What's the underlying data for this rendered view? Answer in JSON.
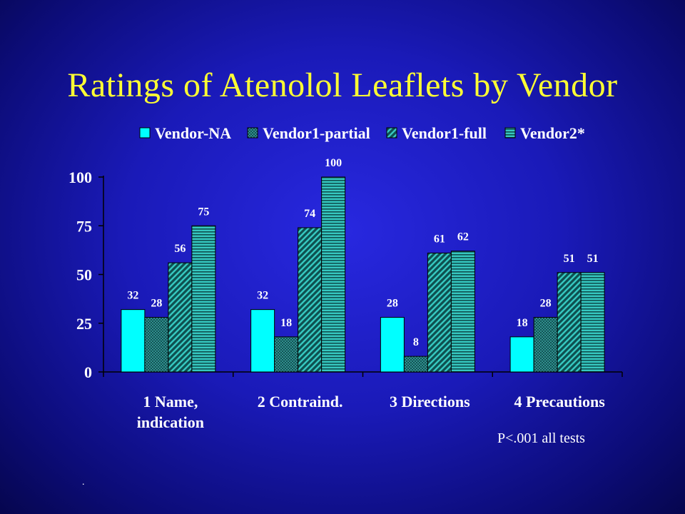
{
  "slide": {
    "title": "Ratings of Atenolol Leaflets by Vendor",
    "footnote": "P<.001 all tests",
    "dot": "."
  },
  "chart_data": {
    "type": "bar",
    "title": "Ratings of Atenolol Leaflets by Vendor",
    "categories": [
      [
        "1 Name,",
        "indication"
      ],
      [
        "2 Contraind."
      ],
      [
        "3 Directions"
      ],
      [
        "4 Precautions"
      ]
    ],
    "series": [
      {
        "name": "Vendor-NA",
        "values": [
          32,
          32,
          28,
          18
        ],
        "fill": "#00ffff",
        "pattern": "solid"
      },
      {
        "name": "Vendor1-partial",
        "values": [
          28,
          18,
          8,
          28
        ],
        "fill": "#2e8b8b",
        "pattern": "crosshatch"
      },
      {
        "name": "Vendor1-full",
        "values": [
          56,
          74,
          61,
          51
        ],
        "fill": "#2e8b8b",
        "pattern": "diagonal"
      },
      {
        "name": "Vendor2*",
        "values": [
          75,
          100,
          62,
          51
        ],
        "fill": "#2e8b8b",
        "pattern": "horizontal"
      }
    ],
    "yticks": [
      0,
      25,
      50,
      75,
      100
    ],
    "ylim": [
      0,
      100
    ],
    "legend_position": "top",
    "grid": false,
    "colors": {
      "axis": "#000000",
      "text": "#ffffff",
      "title": "#ffff33"
    }
  }
}
